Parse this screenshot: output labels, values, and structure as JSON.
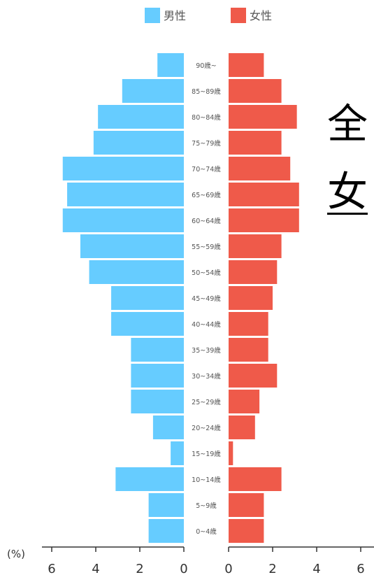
{
  "chart_data": {
    "type": "bar",
    "subtype": "population-pyramid",
    "orientation": "horizontal",
    "legend": [
      {
        "name": "男性",
        "color": "#66ccff"
      },
      {
        "name": "女性",
        "color": "#ef5a4a"
      }
    ],
    "legend_position": "top",
    "unit_label": "(%)",
    "categories": [
      "90歳~",
      "85~89歳",
      "80~84歳",
      "75~79歳",
      "70~74歳",
      "65~69歳",
      "60~64歳",
      "55~59歳",
      "50~54歳",
      "45~49歳",
      "40~44歳",
      "35~39歳",
      "30~34歳",
      "25~29歳",
      "20~24歳",
      "15~19歳",
      "10~14歳",
      "5~9歳",
      "0~4歳"
    ],
    "series": [
      {
        "name": "男性",
        "values": [
          1.2,
          2.8,
          3.9,
          4.1,
          5.5,
          5.3,
          5.5,
          4.7,
          4.3,
          3.3,
          3.3,
          2.4,
          2.4,
          2.4,
          1.4,
          0.6,
          3.1,
          1.6,
          1.6
        ]
      },
      {
        "name": "女性",
        "values": [
          1.6,
          2.4,
          3.1,
          2.4,
          2.8,
          3.2,
          3.2,
          2.4,
          2.2,
          2.0,
          1.8,
          1.8,
          2.2,
          1.4,
          1.2,
          0.2,
          2.4,
          1.6,
          1.6
        ]
      }
    ],
    "x_ticks_left": [
      6,
      4,
      2,
      0
    ],
    "x_ticks_right": [
      0,
      2,
      4,
      6
    ],
    "xlim": [
      0,
      6
    ],
    "grid": false
  },
  "side_text": [
    "全",
    "女"
  ],
  "colors": {
    "male": "#66ccff",
    "female": "#ef5a4a",
    "axis": "#333333",
    "label": "#555555"
  }
}
